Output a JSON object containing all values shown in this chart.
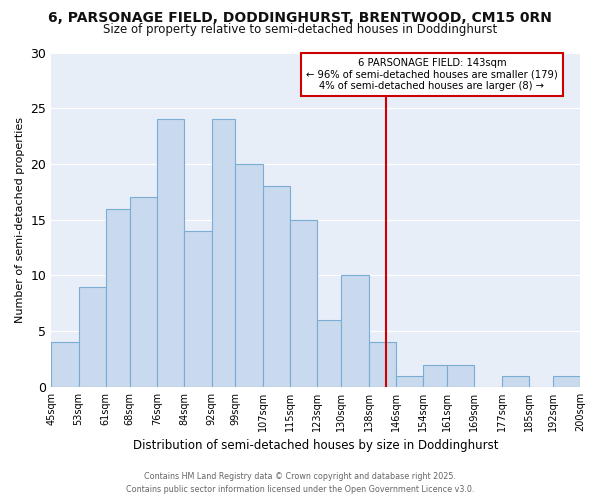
{
  "title1": "6, PARSONAGE FIELD, DODDINGHURST, BRENTWOOD, CM15 0RN",
  "title2": "Size of property relative to semi-detached houses in Doddinghurst",
  "xlabel": "Distribution of semi-detached houses by size in Doddinghurst",
  "ylabel": "Number of semi-detached properties",
  "bin_labels": [
    "45sqm",
    "53sqm",
    "61sqm",
    "68sqm",
    "76sqm",
    "84sqm",
    "92sqm",
    "99sqm",
    "107sqm",
    "115sqm",
    "123sqm",
    "130sqm",
    "138sqm",
    "146sqm",
    "154sqm",
    "161sqm",
    "169sqm",
    "177sqm",
    "185sqm",
    "192sqm",
    "200sqm"
  ],
  "bin_edges": [
    45,
    53,
    61,
    68,
    76,
    84,
    92,
    99,
    107,
    115,
    123,
    130,
    138,
    146,
    154,
    161,
    169,
    177,
    185,
    192,
    200
  ],
  "counts": [
    4,
    9,
    16,
    17,
    24,
    14,
    24,
    20,
    18,
    15,
    6,
    10,
    4,
    1,
    2,
    2,
    0,
    1,
    0,
    1
  ],
  "bar_color": "#c9d9ee",
  "bar_edge_color": "#7aadd4",
  "plot_bg_color": "#e8eef8",
  "fig_bg_color": "#ffffff",
  "grid_color": "#ffffff",
  "property_size": 143,
  "vline_color": "#cc0000",
  "annotation_title": "6 PARSONAGE FIELD: 143sqm",
  "annotation_line1": "← 96% of semi-detached houses are smaller (179)",
  "annotation_line2": "4% of semi-detached houses are larger (8) →",
  "footer1": "Contains HM Land Registry data © Crown copyright and database right 2025.",
  "footer2": "Contains public sector information licensed under the Open Government Licence v3.0.",
  "ylim": [
    0,
    30
  ],
  "yticks": [
    0,
    5,
    10,
    15,
    20,
    25,
    30
  ]
}
